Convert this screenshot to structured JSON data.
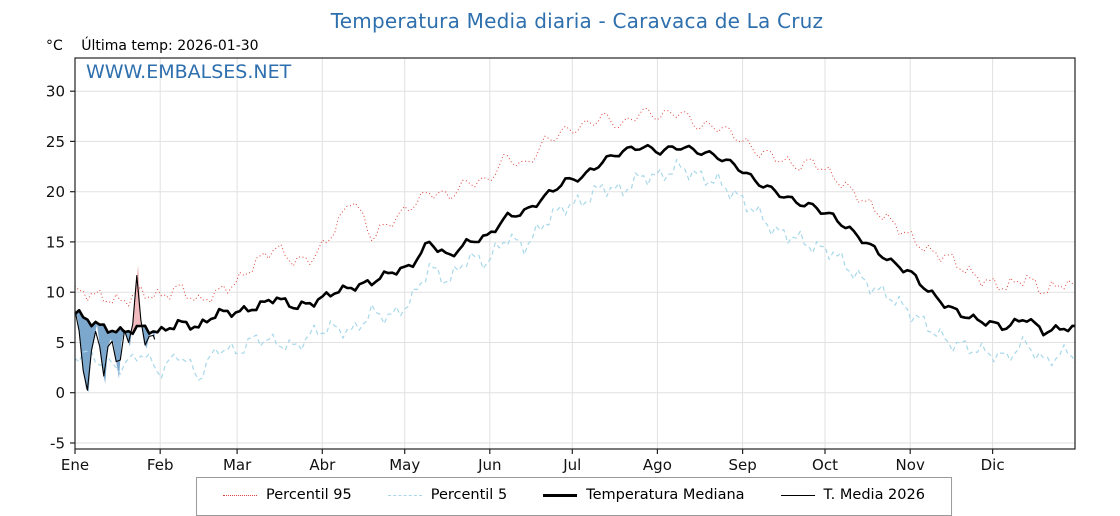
{
  "page": {
    "title": "Temperatura Media diaria - Caravaca de La Cruz",
    "subtitle_unit": "°C",
    "last_temp": "Última temp: 2026-01-30",
    "watermark": "WWW.EMBALSES.NET"
  },
  "colors": {
    "title": "#2e6fad",
    "watermark": "#2e6fad",
    "grid": "#e1e1e1",
    "frame": "#222222",
    "tick_text": "#111111"
  },
  "chart_data": {
    "type": "line",
    "title": "Temperatura Media diaria - Caravaca de La Cruz",
    "xlabel": "",
    "ylabel": "°C",
    "ylim": [
      -5,
      30
    ],
    "y_ticks": [
      -5,
      0,
      5,
      10,
      15,
      20,
      25,
      30
    ],
    "x_ticks": {
      "labels": [
        "Ene",
        "Feb",
        "Mar",
        "Abr",
        "May",
        "Jun",
        "Jul",
        "Ago",
        "Sep",
        "Oct",
        "Nov",
        "Dic"
      ],
      "days": [
        1,
        32,
        60,
        91,
        121,
        152,
        182,
        213,
        244,
        274,
        305,
        335
      ]
    },
    "legend_position": "bottom",
    "grid": true,
    "fill": {
      "above": "#f0b3b8",
      "below": "#6f9ec9"
    },
    "series": [
      {
        "name": "Percentil 95",
        "color": "#e0403a",
        "dash": "dotted",
        "width": 1,
        "texture": 0.5,
        "x": [
          1,
          4,
          11,
          18,
          25,
          32,
          39,
          46,
          53,
          60,
          67,
          74,
          81,
          88,
          95,
          102,
          109,
          116,
          123,
          130,
          137,
          144,
          151,
          158,
          165,
          172,
          179,
          186,
          193,
          200,
          207,
          214,
          221,
          228,
          235,
          242,
          249,
          256,
          263,
          270,
          277,
          284,
          291,
          298,
          305,
          312,
          319,
          326,
          333,
          340,
          347,
          354,
          361,
          365
        ],
        "y": [
          10,
          10,
          9.5,
          9,
          10,
          9.5,
          10.5,
          9,
          10,
          11,
          13,
          14.5,
          13,
          13.5,
          16,
          19.5,
          15.5,
          17,
          18.5,
          20,
          19.5,
          21,
          21,
          23.5,
          22.5,
          25,
          26,
          26.5,
          27.5,
          26.5,
          28,
          27.5,
          28,
          26.5,
          26.5,
          25.5,
          24,
          23.5,
          22.5,
          23,
          21.5,
          20,
          18.5,
          17,
          15.5,
          14,
          13.5,
          12,
          11,
          10.5,
          11.5,
          10,
          11,
          10.5
        ]
      },
      {
        "name": "Percentil 5",
        "color": "#a8d8ea",
        "dash": "dashed",
        "width": 1.2,
        "texture": 0.55,
        "x": [
          1,
          4,
          11,
          18,
          25,
          32,
          39,
          46,
          53,
          60,
          67,
          74,
          81,
          88,
          95,
          102,
          109,
          116,
          123,
          130,
          137,
          144,
          151,
          158,
          165,
          172,
          179,
          186,
          193,
          200,
          207,
          214,
          221,
          228,
          235,
          242,
          249,
          256,
          263,
          270,
          277,
          284,
          291,
          298,
          305,
          312,
          319,
          326,
          333,
          340,
          347,
          354,
          361,
          365
        ],
        "y": [
          3.5,
          4,
          3,
          2.5,
          4,
          2,
          4,
          1.5,
          4.5,
          4,
          5.5,
          5,
          4.5,
          6,
          6.5,
          6,
          8,
          7.5,
          9,
          12.5,
          11,
          13.5,
          13,
          15.5,
          14.5,
          17,
          18.5,
          19,
          20.5,
          20,
          21.5,
          21.5,
          22.5,
          21.5,
          21,
          19.5,
          18,
          16,
          15.5,
          14.5,
          14,
          12,
          10.5,
          9.5,
          8,
          6.5,
          5,
          4.5,
          4,
          3.5,
          5,
          3,
          4,
          3.8
        ]
      },
      {
        "name": "Temperatura Mediana",
        "color": "#000000",
        "dash": "solid",
        "width": 2.6,
        "texture": 0.3,
        "x": [
          1,
          4,
          11,
          18,
          25,
          32,
          39,
          46,
          53,
          60,
          67,
          74,
          81,
          88,
          95,
          102,
          109,
          116,
          123,
          130,
          137,
          144,
          151,
          158,
          165,
          172,
          179,
          186,
          193,
          200,
          207,
          214,
          221,
          228,
          235,
          242,
          249,
          256,
          263,
          270,
          277,
          284,
          291,
          298,
          305,
          312,
          319,
          326,
          333,
          340,
          347,
          354,
          361,
          365
        ],
        "y": [
          8,
          7.5,
          6.5,
          6,
          6.5,
          6,
          7,
          6.5,
          8,
          8,
          8.5,
          9.5,
          8.5,
          9,
          10,
          10.5,
          11,
          12,
          12.5,
          15,
          13.5,
          15,
          15.5,
          17.5,
          18,
          19.5,
          21,
          21.5,
          23,
          24,
          24.5,
          24,
          24.5,
          24,
          23.5,
          22.5,
          21,
          20,
          19,
          18.5,
          17.5,
          16,
          14.5,
          13,
          12,
          10,
          8.5,
          7.5,
          7,
          6.5,
          7.5,
          6,
          6.5,
          6.3
        ]
      },
      {
        "name": "T. Media 2026",
        "color": "#000000",
        "dash": "solid",
        "width": 1.1,
        "texture": 0,
        "x": [
          1,
          2,
          3,
          4,
          5,
          6,
          7,
          8,
          9,
          10,
          11,
          12,
          13,
          14,
          15,
          16,
          17,
          18,
          19,
          20,
          21,
          22,
          23,
          24,
          25,
          26,
          27,
          28,
          29,
          30
        ],
        "y": [
          8.2,
          7.3,
          5,
          2.2,
          0.4,
          0.1,
          4.2,
          5.4,
          6.8,
          4.6,
          2.4,
          0.9,
          4.6,
          5.3,
          4.9,
          3.1,
          1.4,
          5.1,
          6.2,
          5.4,
          4.6,
          6.8,
          10.6,
          12.7,
          7.2,
          5.1,
          4.4,
          5.6,
          6.1,
          5.3
        ]
      }
    ]
  }
}
